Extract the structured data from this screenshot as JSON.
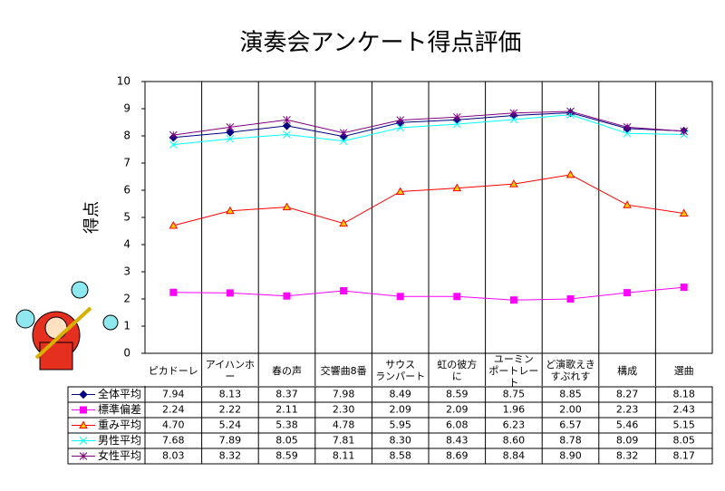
{
  "chart_data": {
    "type": "line",
    "title": "演奏会アンケート得点評価",
    "y_label": "得点",
    "categories": [
      "ピカドーレ",
      "アイハンホー",
      "春の声",
      "交響曲8番",
      "サウス\nランパート",
      "虹の彼方\nに",
      "ユーミン\nポートレート",
      "ど演歌えき\nすぷれす",
      "構成",
      "選曲"
    ],
    "ylim": [
      0,
      10
    ],
    "yticks": [
      0,
      1,
      2,
      3,
      4,
      5,
      6,
      7,
      8,
      9,
      10
    ],
    "grid": false,
    "category_grid": true,
    "series": [
      {
        "name": "全体平均",
        "color": "#000080",
        "marker": "diamond",
        "marker_color": "#000080",
        "values": [
          7.94,
          8.13,
          8.37,
          7.98,
          8.49,
          8.59,
          8.75,
          8.85,
          8.27,
          8.18
        ],
        "value_labels": [
          "7.94",
          "8.13",
          "8.37",
          "7.98",
          "8.49",
          "8.59",
          "8.75",
          "8.85",
          "8.27",
          "8.18"
        ]
      },
      {
        "name": "標準偏差",
        "color": "#ff00ff",
        "marker": "square",
        "marker_color": "#ff00ff",
        "values": [
          2.24,
          2.22,
          2.11,
          2.3,
          2.09,
          2.09,
          1.96,
          2.0,
          2.23,
          2.43
        ],
        "value_labels": [
          "2.24",
          "2.22",
          "2.11",
          "2.30",
          "2.09",
          "2.09",
          "1.96",
          "2.00",
          "2.23",
          "2.43"
        ]
      },
      {
        "name": "重み平均",
        "color": "#ff0000",
        "marker": "triangle",
        "marker_color": "#ffcc00",
        "values": [
          4.7,
          5.24,
          5.38,
          4.78,
          5.95,
          6.08,
          6.23,
          6.57,
          5.46,
          5.15
        ],
        "value_labels": [
          "4.70",
          "5.24",
          "5.38",
          "4.78",
          "5.95",
          "6.08",
          "6.23",
          "6.57",
          "5.46",
          "5.15"
        ]
      },
      {
        "name": "男性平均",
        "color": "#00ffff",
        "marker": "x",
        "marker_color": "#00ffff",
        "values": [
          7.68,
          7.89,
          8.05,
          7.81,
          8.3,
          8.43,
          8.6,
          8.78,
          8.09,
          8.05
        ],
        "value_labels": [
          "7.68",
          "7.89",
          "8.05",
          "7.81",
          "8.30",
          "8.43",
          "8.60",
          "8.78",
          "8.09",
          "8.05"
        ]
      },
      {
        "name": "女性平均",
        "color": "#800080",
        "marker": "star",
        "marker_color": "#800080",
        "values": [
          8.03,
          8.32,
          8.59,
          8.11,
          8.58,
          8.69,
          8.84,
          8.9,
          8.32,
          8.17
        ],
        "value_labels": [
          "8.03",
          "8.32",
          "8.59",
          "8.11",
          "8.58",
          "8.69",
          "8.84",
          "8.90",
          "8.32",
          "8.17"
        ]
      }
    ]
  }
}
